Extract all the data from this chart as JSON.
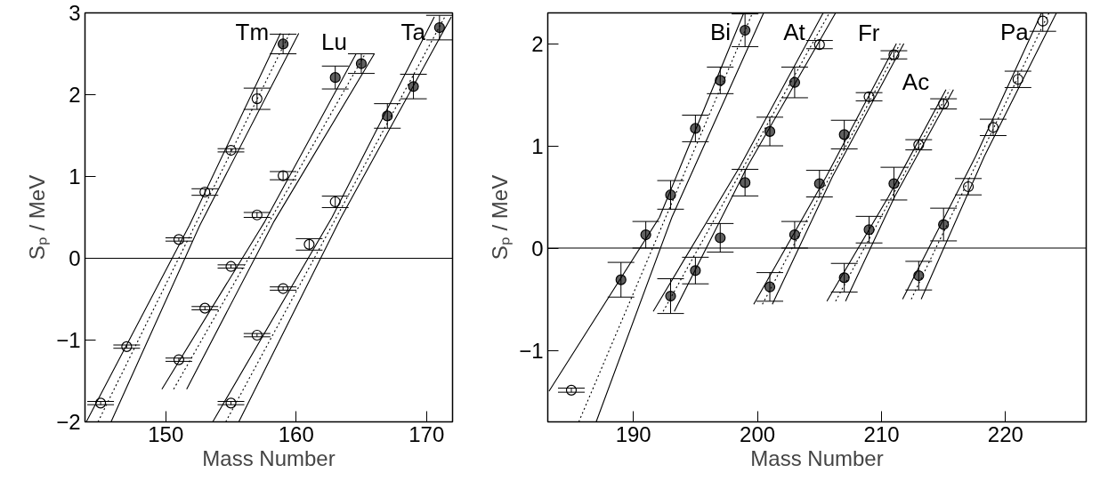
{
  "chart_data": [
    {
      "type": "scatter",
      "xlabel": "Mass Number",
      "ylabel": "Sₚ / MeV",
      "xlim": [
        143.8,
        172.0
      ],
      "ylim": [
        -2,
        3
      ],
      "xticks": [
        150,
        160,
        170
      ],
      "yticks": [
        -2,
        -1,
        0,
        1,
        2,
        3
      ],
      "grid": false,
      "legend": "top",
      "marker": "circle",
      "ref_lines": [
        {
          "axis": "y",
          "value": 0,
          "color": "#000000"
        }
      ],
      "series": [
        {
          "name": "Tm",
          "color": "#000000",
          "x": [
            145,
            147,
            151,
            153,
            155,
            157,
            159
          ],
          "values": [
            -1.77,
            -1.08,
            0.23,
            0.81,
            1.32,
            1.95,
            2.62
          ],
          "errors": [
            0.02,
            0.02,
            0.02,
            0.04,
            0.02,
            0.13,
            0.12
          ],
          "colors": [
            "#ffffff",
            "#ffffff",
            "#ffffff",
            "#ffffff",
            "#ffffff",
            "#ffffff",
            "#606060"
          ]
        },
        {
          "name": "Lu",
          "color": "#000000",
          "x": [
            151,
            153,
            155,
            157,
            159,
            163,
            165
          ],
          "values": [
            -1.24,
            -0.61,
            -0.1,
            0.53,
            1.01,
            2.21,
            2.38
          ],
          "errors": [
            0.02,
            0.02,
            0.02,
            0.03,
            0.05,
            0.14,
            0.12
          ],
          "colors": [
            "#ffffff",
            "#ffffff",
            "#ffffff",
            "#ffffff",
            "#ffffff",
            "#606060",
            "#606060"
          ]
        },
        {
          "name": "Ta",
          "color": "#000000",
          "x": [
            155,
            157,
            159,
            161,
            163,
            167,
            169,
            171
          ],
          "values": [
            -1.77,
            -0.94,
            -0.37,
            0.17,
            0.69,
            1.74,
            2.1,
            2.82
          ],
          "errors": [
            0.02,
            0.02,
            0.02,
            0.07,
            0.07,
            0.15,
            0.15,
            0.15
          ],
          "colors": [
            "#ffffff",
            "#ffffff",
            "#ffffff",
            "#ffffff",
            "#ffffff",
            "#606060",
            "#606060",
            "#606060"
          ]
        },
        {
          "type": "line",
          "marker": "none",
          "color": "#000000",
          "line_style": "dotted",
          "x": [
            144.8,
            159.5
          ],
          "values": [
            -2.0,
            2.75
          ]
        },
        {
          "type": "line",
          "marker": "none",
          "color": "#000000",
          "line_style": "solid",
          "x": [
            143.9,
            151.8,
            158.8
          ],
          "values": [
            -2.0,
            0.4,
            2.75
          ]
        },
        {
          "type": "line",
          "marker": "none",
          "color": "#000000",
          "line_style": "solid",
          "x": [
            145.8,
            152.6,
            160.2
          ],
          "values": [
            -2.0,
            0.4,
            2.75
          ]
        },
        {
          "type": "line",
          "marker": "none",
          "color": "#000000",
          "line_style": "dotted",
          "x": [
            150.6,
            165.3
          ],
          "values": [
            -1.6,
            2.5
          ]
        },
        {
          "type": "line",
          "marker": "none",
          "color": "#000000",
          "line_style": "solid",
          "x": [
            149.7,
            157.6,
            164.6
          ],
          "values": [
            -1.6,
            0.45,
            2.5
          ]
        },
        {
          "type": "line",
          "marker": "none",
          "color": "#000000",
          "line_style": "solid",
          "x": [
            151.6,
            158.3,
            166.0
          ],
          "values": [
            -1.6,
            0.45,
            2.5
          ]
        },
        {
          "type": "line",
          "marker": "none",
          "color": "#000000",
          "line_style": "dotted",
          "x": [
            154.6,
            171.4
          ],
          "values": [
            -2.0,
            2.95
          ]
        },
        {
          "type": "line",
          "marker": "none",
          "color": "#000000",
          "line_style": "solid",
          "x": [
            153.6,
            162.75,
            170.6
          ],
          "values": [
            -2.0,
            0.5,
            2.95
          ]
        },
        {
          "type": "line",
          "marker": "none",
          "color": "#000000",
          "line_style": "solid",
          "x": [
            155.6,
            163.45,
            171.9
          ],
          "values": [
            -2.0,
            0.5,
            2.95
          ]
        }
      ]
    },
    {
      "type": "scatter",
      "xlabel": "Mass Number",
      "ylabel": "Sₚ / MeV",
      "xlim": [
        183.1,
        226.5
      ],
      "ylim": [
        -1.7,
        2.3
      ],
      "xticks": [
        190,
        200,
        210,
        220
      ],
      "yticks": [
        -1,
        0,
        1,
        2
      ],
      "grid": false,
      "legend": "top",
      "marker": "circle",
      "ref_lines": [
        {
          "axis": "y",
          "value": 0,
          "color": "#000000"
        }
      ],
      "series": [
        {
          "name": "Bi",
          "color": "#000000",
          "x": [
            185,
            189,
            191,
            193,
            195,
            197,
            199
          ],
          "values": [
            -1.39,
            -0.31,
            0.13,
            0.52,
            1.17,
            1.64,
            2.13
          ],
          "errors": [
            0.02,
            0.17,
            0.13,
            0.14,
            0.13,
            0.13,
            0.16
          ],
          "colors": [
            "#ffffff",
            "#606060",
            "#606060",
            "#606060",
            "#606060",
            "#606060",
            "#606060"
          ]
        },
        {
          "name": "At",
          "color": "#000000",
          "x": [
            193,
            195,
            197,
            199,
            201,
            203,
            205
          ],
          "values": [
            -0.47,
            -0.22,
            0.1,
            0.64,
            1.14,
            1.62,
            1.99
          ],
          "errors": [
            0.17,
            0.13,
            0.14,
            0.13,
            0.14,
            0.15,
            0.04
          ],
          "colors": [
            "#606060",
            "#606060",
            "#606060",
            "#606060",
            "#606060",
            "#606060",
            "#ffffff"
          ]
        },
        {
          "name": "Fr",
          "color": "#000000",
          "x": [
            201,
            203,
            205,
            207,
            209,
            211
          ],
          "values": [
            -0.38,
            0.13,
            0.63,
            1.11,
            1.48,
            1.89
          ],
          "errors": [
            0.14,
            0.13,
            0.13,
            0.14,
            0.04,
            0.04
          ],
          "colors": [
            "#606060",
            "#606060",
            "#606060",
            "#606060",
            "#ffffff",
            "#ffffff"
          ]
        },
        {
          "name": "Ac",
          "color": "#000000",
          "x": [
            207,
            209,
            211,
            213,
            215
          ],
          "values": [
            -0.29,
            0.18,
            0.63,
            1.01,
            1.41
          ],
          "errors": [
            0.14,
            0.13,
            0.16,
            0.05,
            0.05
          ],
          "colors": [
            "#606060",
            "#606060",
            "#606060",
            "#ffffff",
            "#ffffff"
          ]
        },
        {
          "name": "Pa",
          "color": "#000000",
          "x": [
            213,
            215,
            217,
            219,
            221,
            223
          ],
          "values": [
            -0.27,
            0.23,
            0.6,
            1.18,
            1.65,
            2.22
          ],
          "errors": [
            0.14,
            0.16,
            0.08,
            0.08,
            0.08,
            0.1
          ],
          "colors": [
            "#606060",
            "#606060",
            "#ffffff",
            "#ffffff",
            "#ffffff",
            "#ffffff"
          ]
        },
        {
          "type": "line",
          "marker": "none",
          "color": "#000000",
          "line_style": "dotted",
          "x": [
            185.6,
            199.6
          ],
          "values": [
            -1.7,
            2.3
          ]
        },
        {
          "type": "line",
          "marker": "none",
          "color": "#000000",
          "line_style": "solid",
          "x": [
            183.2,
            192.1,
            198.9
          ],
          "values": [
            -1.4,
            0.3,
            2.3
          ]
        },
        {
          "type": "line",
          "marker": "none",
          "color": "#000000",
          "line_style": "solid",
          "x": [
            187.0,
            193.1,
            200.5
          ],
          "values": [
            -1.7,
            0.3,
            2.3
          ]
        },
        {
          "type": "line",
          "marker": "none",
          "color": "#000000",
          "line_style": "dotted",
          "x": [
            192.4,
            205.8
          ],
          "values": [
            -0.62,
            2.3
          ]
        },
        {
          "type": "line",
          "marker": "none",
          "color": "#000000",
          "line_style": "solid",
          "x": [
            191.6,
            198.6,
            205.3
          ],
          "values": [
            -0.62,
            0.8,
            2.3
          ]
        },
        {
          "type": "line",
          "marker": "none",
          "color": "#000000",
          "line_style": "solid",
          "x": [
            193.3,
            199.2,
            206.3
          ],
          "values": [
            -0.62,
            0.8,
            2.3
          ]
        },
        {
          "type": "line",
          "marker": "none",
          "color": "#000000",
          "line_style": "dotted",
          "x": [
            200.4,
            211.5
          ],
          "values": [
            -0.55,
            2.0
          ]
        },
        {
          "type": "line",
          "marker": "none",
          "color": "#000000",
          "line_style": "solid",
          "x": [
            199.7,
            205.55,
            211.2
          ],
          "values": [
            -0.55,
            0.7,
            2.0
          ]
        },
        {
          "type": "line",
          "marker": "none",
          "color": "#000000",
          "line_style": "solid",
          "x": [
            201.2,
            206.05,
            211.8
          ],
          "values": [
            -0.55,
            0.7,
            2.0
          ]
        },
        {
          "type": "line",
          "marker": "none",
          "color": "#000000",
          "line_style": "dotted",
          "x": [
            206.3,
            215.5
          ],
          "values": [
            -0.52,
            1.55
          ]
        },
        {
          "type": "line",
          "marker": "none",
          "color": "#000000",
          "line_style": "solid",
          "x": [
            205.6,
            210.55,
            215.2
          ],
          "values": [
            -0.52,
            0.5,
            1.55
          ]
        },
        {
          "type": "line",
          "marker": "none",
          "color": "#000000",
          "line_style": "solid",
          "x": [
            207.1,
            211.05,
            215.8
          ],
          "values": [
            -0.52,
            0.5,
            1.55
          ]
        },
        {
          "type": "line",
          "marker": "none",
          "color": "#000000",
          "line_style": "dotted",
          "x": [
            212.4,
            223.5
          ],
          "values": [
            -0.5,
            2.3
          ]
        },
        {
          "type": "line",
          "marker": "none",
          "color": "#000000",
          "line_style": "solid",
          "x": [
            211.7,
            217.6,
            222.9
          ],
          "values": [
            -0.5,
            0.9,
            2.3
          ]
        },
        {
          "type": "line",
          "marker": "none",
          "color": "#000000",
          "line_style": "solid",
          "x": [
            213.2,
            218.3,
            224.1
          ],
          "values": [
            -0.5,
            0.9,
            2.3
          ]
        }
      ]
    }
  ]
}
